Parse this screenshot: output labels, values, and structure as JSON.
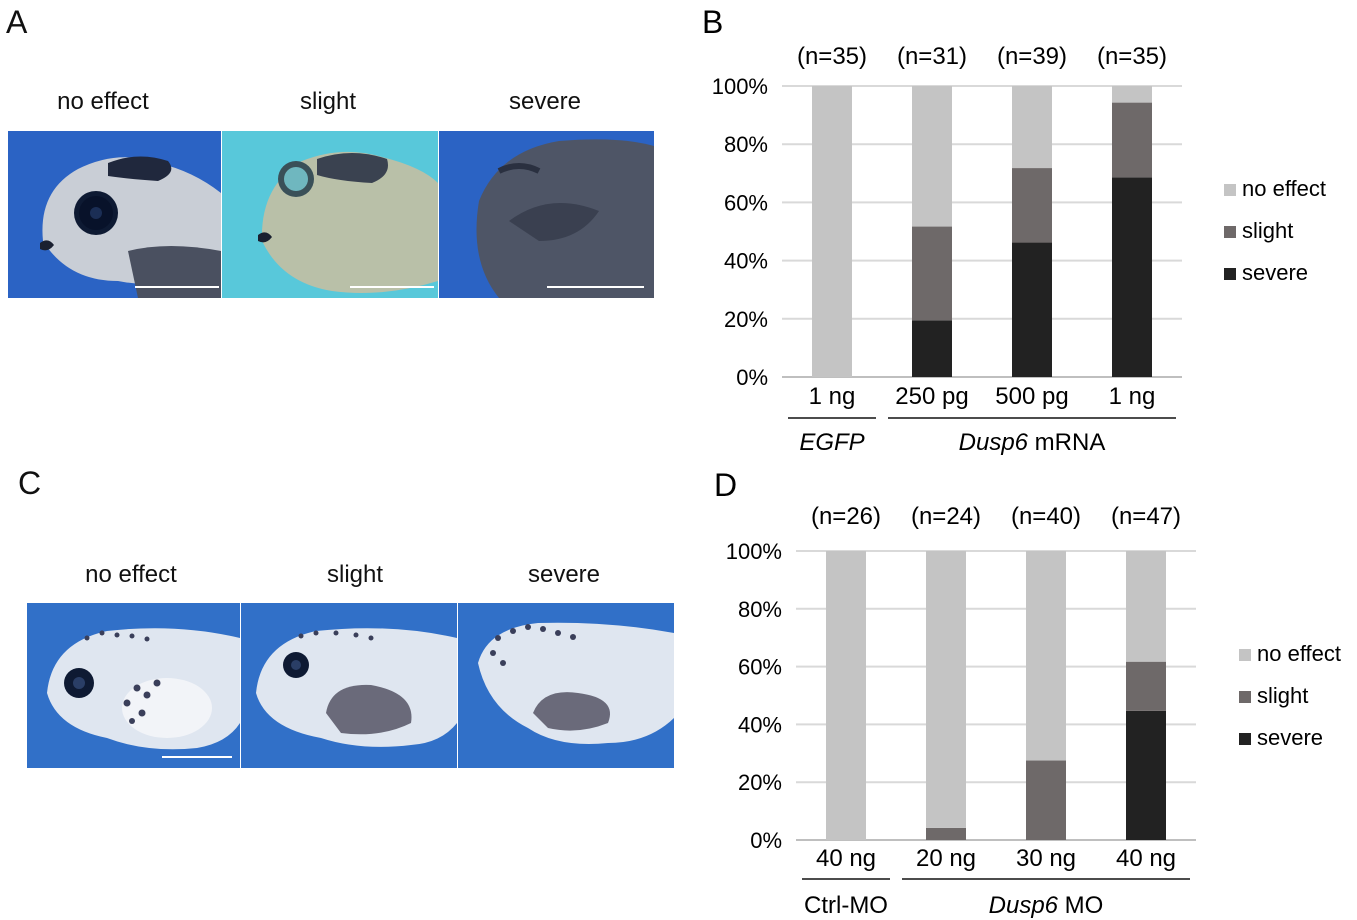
{
  "panelA": {
    "letter": "A",
    "captions": [
      "no effect",
      "slight",
      "severe"
    ],
    "icons": [
      "tadpole-head-photo-no-effect",
      "tadpole-head-photo-slight",
      "tadpole-head-photo-severe"
    ]
  },
  "panelC": {
    "letter": "C",
    "captions": [
      "no effect",
      "slight",
      "severe"
    ],
    "icons": [
      "tadpole-body-photo-no-effect",
      "tadpole-body-photo-slight",
      "tadpole-body-photo-severe"
    ]
  },
  "colors": {
    "no_effect": "#c4c4c4",
    "slight": "#6e6969",
    "severe": "#222222",
    "grid": "#d9d9d9",
    "photo_blue": "#2a66c8",
    "photo_cyan": "#55c6d8"
  },
  "chart_data": [
    {
      "type": "bar",
      "stacked": true,
      "panel_letter": "B",
      "categories": [
        "1 ng",
        "250 pg",
        "500 pg",
        "1 ng"
      ],
      "n_labels": [
        "(n=35)",
        "(n=31)",
        "(n=39)",
        "(n=35)"
      ],
      "groups": [
        {
          "label_italic": "EGFP",
          "label_rest": "",
          "span": [
            0,
            0
          ]
        },
        {
          "label_italic": "Dusp6",
          "label_rest": " mRNA",
          "span": [
            1,
            3
          ]
        }
      ],
      "series": [
        {
          "name": "severe",
          "values": [
            0,
            19.4,
            46.2,
            68.6
          ]
        },
        {
          "name": "slight",
          "values": [
            0,
            32.3,
            25.6,
            25.7
          ]
        },
        {
          "name": "no effect",
          "values": [
            100,
            48.3,
            28.2,
            5.7
          ]
        }
      ],
      "legend_order": [
        "no effect",
        "slight",
        "severe"
      ],
      "yticks": [
        "0%",
        "20%",
        "40%",
        "60%",
        "80%",
        "100%"
      ],
      "ylim": [
        0,
        100
      ],
      "grid": true,
      "legend": "right"
    },
    {
      "type": "bar",
      "stacked": true,
      "panel_letter": "D",
      "categories": [
        "40 ng",
        "20 ng",
        "30 ng",
        "40 ng"
      ],
      "n_labels": [
        "(n=26)",
        "(n=24)",
        "(n=40)",
        "(n=47)"
      ],
      "groups": [
        {
          "label_italic": "",
          "label_rest": "Ctrl-MO",
          "span": [
            0,
            0
          ]
        },
        {
          "label_italic": "Dusp6",
          "label_rest": " MO",
          "span": [
            1,
            3
          ]
        }
      ],
      "series": [
        {
          "name": "severe",
          "values": [
            0,
            0,
            0,
            44.7
          ]
        },
        {
          "name": "slight",
          "values": [
            0,
            4.2,
            27.5,
            17.0
          ]
        },
        {
          "name": "no effect",
          "values": [
            100,
            95.8,
            72.5,
            38.3
          ]
        }
      ],
      "legend_order": [
        "no effect",
        "slight",
        "severe"
      ],
      "yticks": [
        "0%",
        "20%",
        "40%",
        "60%",
        "80%",
        "100%"
      ],
      "ylim": [
        0,
        100
      ],
      "grid": true,
      "legend": "right"
    }
  ]
}
